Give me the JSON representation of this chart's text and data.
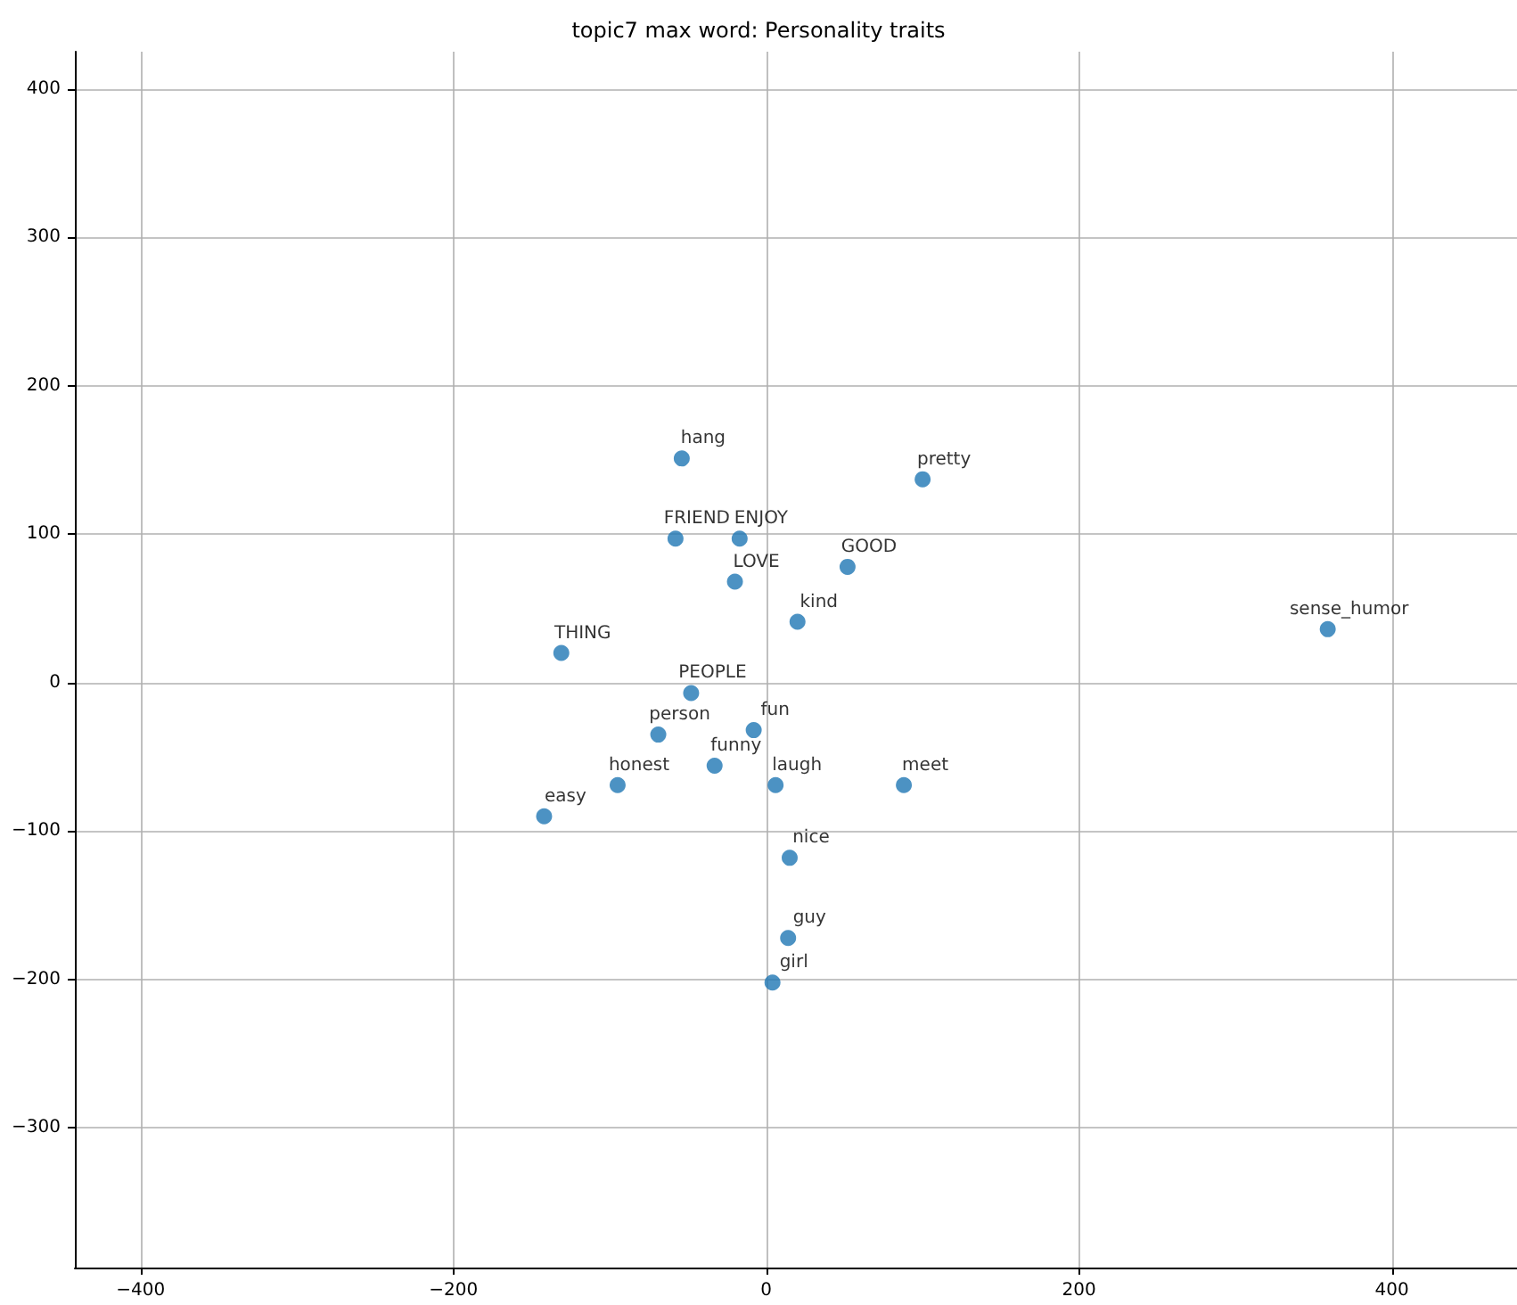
{
  "chart_data": {
    "type": "scatter",
    "title": "topic7 max word: Personality traits",
    "x": [
      -54,
      100,
      -58,
      -17,
      52,
      -20,
      20,
      -131,
      -48,
      -69,
      -8,
      -33,
      -95,
      6,
      88,
      -142,
      15,
      14,
      4,
      359
    ],
    "values": [
      151,
      137,
      97,
      97,
      78,
      68,
      41,
      20,
      -7,
      -35,
      -32,
      -56,
      -69,
      -69,
      -69,
      -90,
      -118,
      -172,
      -202,
      36
    ],
    "color": "#1f77b4",
    "marker": "circle",
    "grid": true,
    "xlim": [
      -442,
      480
    ],
    "xticks": [
      -400,
      -200,
      0,
      200,
      400
    ],
    "ylim": [
      -394,
      425
    ],
    "yticks": [
      -300,
      -200,
      -100,
      0,
      100,
      200,
      300,
      400
    ],
    "annotations": [
      {
        "text": "hang",
        "x": -54,
        "y": 151
      },
      {
        "text": "pretty",
        "x": 100,
        "y": 137
      },
      {
        "text": "FRIEND",
        "x": -58,
        "y": 97
      },
      {
        "text": "ENJOY",
        "x": -17,
        "y": 97
      },
      {
        "text": "GOOD",
        "x": 52,
        "y": 78
      },
      {
        "text": "LOVE",
        "x": -20,
        "y": 68
      },
      {
        "text": "kind",
        "x": 20,
        "y": 41
      },
      {
        "text": "THING",
        "x": -131,
        "y": 20
      },
      {
        "text": "PEOPLE",
        "x": -48,
        "y": -7
      },
      {
        "text": "person",
        "x": -69,
        "y": -35
      },
      {
        "text": "fun",
        "x": -8,
        "y": -32
      },
      {
        "text": "funny",
        "x": -33,
        "y": -56
      },
      {
        "text": "honest",
        "x": -95,
        "y": -69
      },
      {
        "text": "laugh",
        "x": 6,
        "y": -69
      },
      {
        "text": "meet",
        "x": 88,
        "y": -69
      },
      {
        "text": "easy",
        "x": -142,
        "y": -90
      },
      {
        "text": "nice",
        "x": 15,
        "y": -118
      },
      {
        "text": "guy",
        "x": 14,
        "y": -172
      },
      {
        "text": "girl",
        "x": 4,
        "y": -202
      },
      {
        "text": "sense_humor",
        "x": 359,
        "y": 36
      }
    ]
  }
}
